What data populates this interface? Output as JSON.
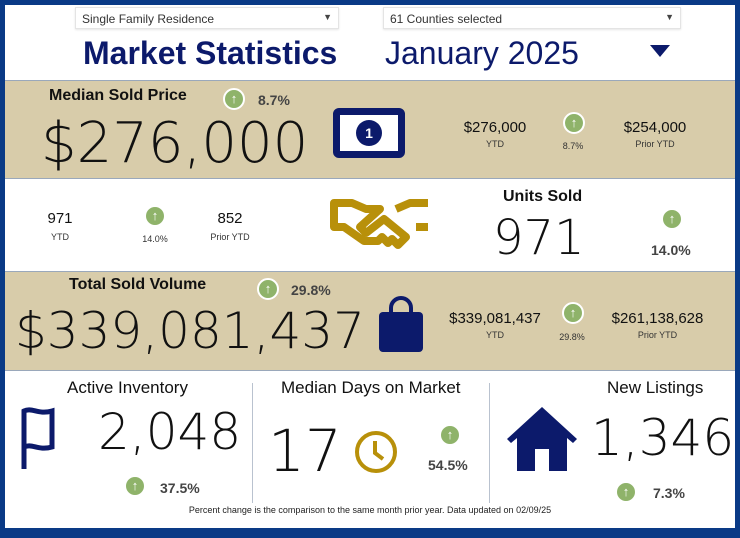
{
  "filters": {
    "property_type": "Single Family Residence",
    "counties": "61 Counties selected"
  },
  "header": {
    "title": "Market Statistics",
    "period": "January 2025"
  },
  "median_sold_price": {
    "label": "Median Sold Price",
    "value": "$276,000",
    "change": "8.7%",
    "ytd": "$276,000",
    "ytd_label": "YTD",
    "ytd_change": "8.7%",
    "prior_ytd": "$254,000",
    "prior_ytd_label": "Prior YTD"
  },
  "units_sold": {
    "label": "Units Sold",
    "value": "971",
    "change": "14.0%",
    "ytd": "971",
    "ytd_label": "YTD",
    "ytd_change": "14.0%",
    "prior_ytd": "852",
    "prior_ytd_label": "Prior YTD"
  },
  "total_sold_volume": {
    "label": "Total Sold Volume",
    "value": "$339,081,437",
    "change": "29.8%",
    "ytd": "$339,081,437",
    "ytd_label": "YTD",
    "ytd_change": "29.8%",
    "prior_ytd": "$261,138,628",
    "prior_ytd_label": "Prior YTD"
  },
  "active_inventory": {
    "label": "Active Inventory",
    "value": "2,048",
    "change": "37.5%"
  },
  "median_days": {
    "label": "Median Days on Market",
    "value": "17",
    "change": "54.5%"
  },
  "new_listings": {
    "label": "New Listings",
    "value": "1,346",
    "change": "7.3%"
  },
  "footer": "Percent change is the comparison to the same month prior year. Data updated on 02/09/25",
  "colors": {
    "navy": "#0c1a6b",
    "tan": "#d8ccaa",
    "green": "#8fb36a",
    "gold": "#b8900a",
    "border": "#0a3a86"
  }
}
